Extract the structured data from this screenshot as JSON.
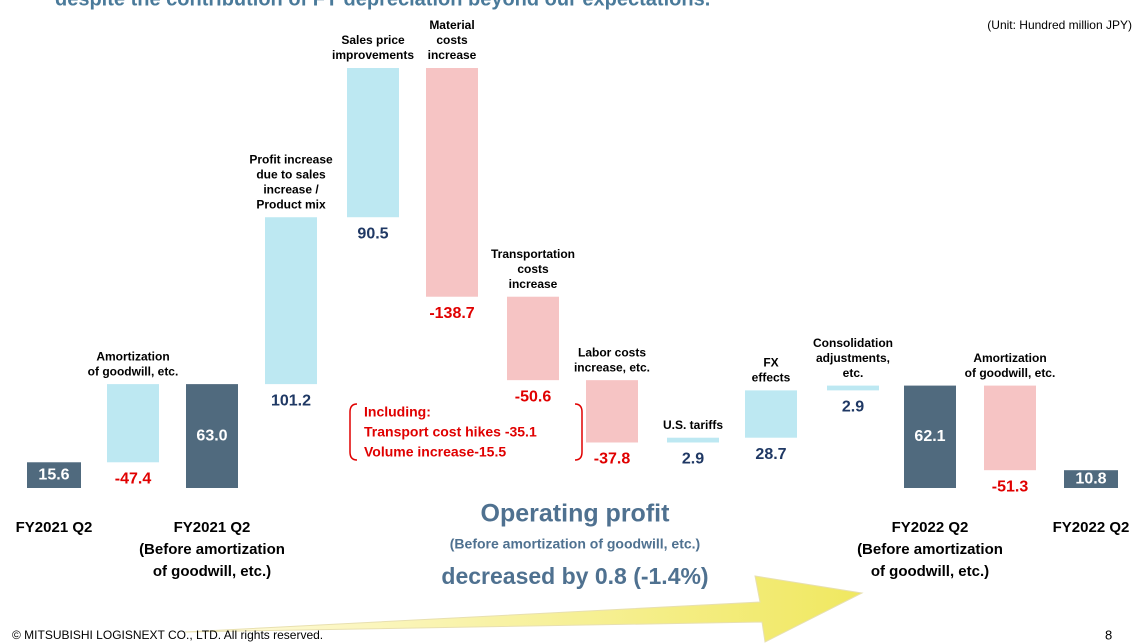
{
  "header": {
    "title": "despite the contribution of FY depreciation beyond our expectations.",
    "unit": "(Unit: Hundred   million JPY)"
  },
  "chart_data": {
    "type": "waterfall",
    "categories": [
      [
        "FY2021 Q2"
      ],
      [
        "Amortization",
        "of goodwill, etc."
      ],
      [
        "FY2021 Q2",
        "(Before amortization",
        "of goodwill, etc.)"
      ],
      [
        "Profit increase",
        "due to sales",
        "increase /",
        "Product mix"
      ],
      [
        "Sales price",
        "improvements"
      ],
      [
        "Material",
        "costs",
        "increase"
      ],
      [
        "Transportation",
        "costs",
        "increase"
      ],
      [
        "Labor costs",
        "increase, etc."
      ],
      [
        "U.S. tariffs"
      ],
      [
        "FX",
        "effects"
      ],
      [
        "Consolidation",
        "adjustments,",
        "etc."
      ],
      [
        "FY2022 Q2",
        "(Before amortization",
        "of goodwill, etc.)"
      ],
      [
        "Amortization",
        "of goodwill, etc."
      ],
      [
        "FY2022 Q2"
      ]
    ],
    "kinds": [
      "total",
      "change",
      "total",
      "change",
      "change",
      "change",
      "change",
      "change",
      "change",
      "change",
      "change",
      "total",
      "change",
      "total"
    ],
    "values": [
      15.6,
      -47.4,
      63.0,
      101.2,
      90.5,
      -138.7,
      -50.6,
      -37.8,
      2.9,
      28.7,
      2.9,
      62.1,
      -51.3,
      10.8
    ],
    "value_labels": [
      "15.6",
      "-47.4",
      "63.0",
      "101.2",
      "90.5",
      "-138.7",
      "-50.6",
      "-37.8",
      "2.9",
      "28.7",
      "2.9",
      "62.1",
      "-51.3",
      "10.8"
    ],
    "colors": {
      "total": "#506a7e",
      "increase": "#bde8f2",
      "decrease": "#f6c4c4"
    },
    "annotation": [
      "Including:",
      "Transport cost hikes -35.1",
      "Volume increase-15.5"
    ]
  },
  "summary": [
    "Operating profit",
    "(Before amortization of goodwill, etc.)",
    "decreased by 0.8 (-1.4%)"
  ],
  "footer": {
    "copyright": "© MITSUBISHI LOGISNEXT CO., LTD. All rights reserved.",
    "page": "8"
  }
}
